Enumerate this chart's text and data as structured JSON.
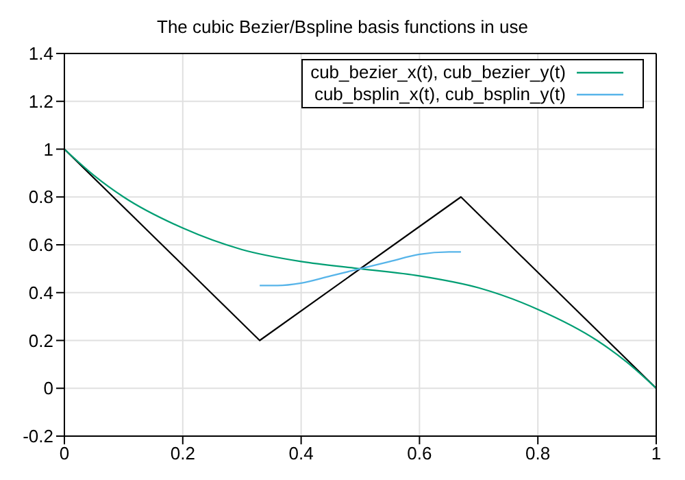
{
  "chart_data": {
    "type": "line",
    "title": "The cubic Bezier/Bspline basis functions in use",
    "series": [
      {
        "color": "#000000",
        "x": [
          0,
          0.33,
          0.67,
          1
        ],
        "values": [
          1,
          0.2,
          0.8,
          0
        ]
      },
      {
        "name": "cub_bezier_x(t), cub_bezier_y(t)",
        "color": "#009e73",
        "x": [
          0,
          0.05,
          0.1,
          0.2,
          0.3,
          0.4,
          0.5,
          0.6,
          0.7,
          0.8,
          0.9,
          0.95,
          1
        ],
        "values": [
          1,
          0.89,
          0.8,
          0.67,
          0.58,
          0.53,
          0.5,
          0.47,
          0.42,
          0.33,
          0.2,
          0.11,
          0
        ]
      },
      {
        "name": "cub_bsplin_x(t), cub_bsplin_y(t)",
        "color": "#56b4e9",
        "x": [
          0.33,
          0.36,
          0.4,
          0.45,
          0.5,
          0.55,
          0.6,
          0.65,
          0.67
        ],
        "values": [
          0.43,
          0.43,
          0.44,
          0.47,
          0.5,
          0.53,
          0.56,
          0.57,
          0.57
        ]
      }
    ],
    "xlim": [
      0,
      1
    ],
    "xticks": [
      0,
      0.2,
      0.4,
      0.6,
      0.8,
      1
    ],
    "ylim": [
      -0.2,
      1.4
    ],
    "yticks": [
      -0.2,
      0,
      0.2,
      0.4,
      0.6,
      0.8,
      1,
      1.2,
      1.4
    ],
    "grid": true,
    "legend": "top right",
    "marker": "none",
    "line_style": "solid"
  }
}
